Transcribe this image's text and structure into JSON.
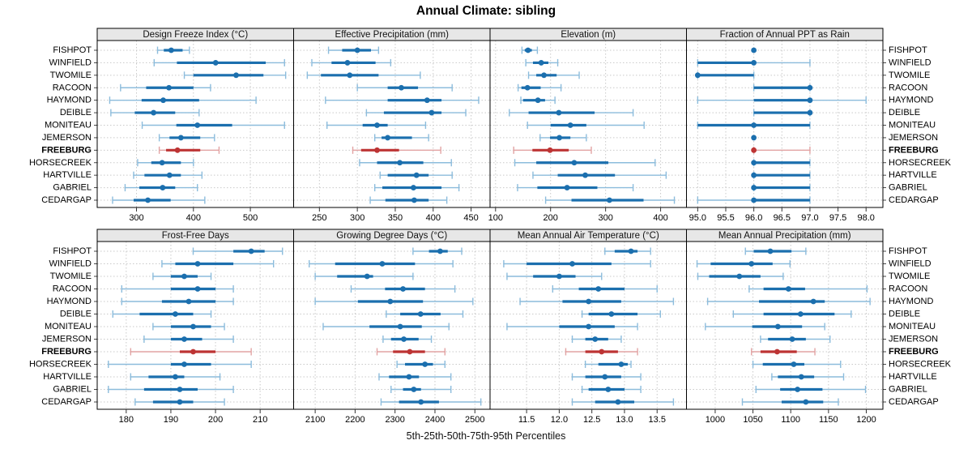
{
  "title": "Annual Climate: sibling",
  "caption": "5th-25th-50th-75th-95th Percentiles",
  "percentiles": [
    5,
    25,
    50,
    75,
    95
  ],
  "sites": [
    "FISHPOT",
    "WINFIELD",
    "TWOMILE",
    "RACOON",
    "HAYMOND",
    "DEIBLE",
    "MONITEAU",
    "JEMERSON",
    "FREEBURG",
    "HORSECREEK",
    "HARTVILLE",
    "GABRIEL",
    "CEDARGAP"
  ],
  "highlight_site": "FREEBURG",
  "colors": {
    "point_normal": "#1b6fae",
    "whisker_normal": "#8cbcdc",
    "point_highlight": "#bd3434",
    "whisker_highlight": "#e2a3a3",
    "strip_bg": "#e7e7e7",
    "grid": "#c9c9c9",
    "border": "#000000"
  },
  "chart_data": [
    {
      "type": "interval",
      "slug": "design-freeze-index",
      "title": "Design Freeze Index (°C)",
      "xlim": [
        231,
        576
      ],
      "ticks": [
        300,
        400,
        500
      ],
      "tick_labels": [
        "300",
        "400",
        "500"
      ],
      "values": [
        [
          337,
          348,
          361,
          381,
          393
        ],
        [
          331,
          371,
          439,
          527,
          560
        ],
        [
          384,
          400,
          475,
          523,
          562
        ],
        [
          272,
          317,
          357,
          400,
          430
        ],
        [
          253,
          309,
          347,
          410,
          510
        ],
        [
          255,
          297,
          330,
          368,
          410
        ],
        [
          310,
          370,
          407,
          468,
          560
        ],
        [
          340,
          358,
          378,
          412,
          437
        ],
        [
          340,
          352,
          372,
          412,
          445
        ],
        [
          302,
          326,
          345,
          378,
          400
        ],
        [
          295,
          314,
          358,
          378,
          415
        ],
        [
          280,
          305,
          346,
          368,
          407
        ],
        [
          258,
          295,
          320,
          360,
          420
        ]
      ]
    },
    {
      "type": "interval",
      "slug": "effective-precipitation",
      "title": "Effective Precipitation (mm)",
      "xlim": [
        216,
        475
      ],
      "ticks": [
        250,
        300,
        350,
        400,
        450
      ],
      "tick_labels": [
        "250",
        "300",
        "350",
        "400",
        "450"
      ],
      "values": [
        [
          262,
          280,
          300,
          318,
          328
        ],
        [
          240,
          266,
          287,
          324,
          344
        ],
        [
          234,
          252,
          290,
          328,
          383
        ],
        [
          300,
          340,
          358,
          380,
          425
        ],
        [
          258,
          340,
          392,
          411,
          460
        ],
        [
          312,
          335,
          398,
          411,
          443
        ],
        [
          260,
          307,
          326,
          340,
          390
        ],
        [
          323,
          332,
          340,
          372,
          394
        ],
        [
          294,
          305,
          326,
          355,
          410
        ],
        [
          303,
          326,
          356,
          387,
          424
        ],
        [
          330,
          340,
          378,
          394,
          425
        ],
        [
          323,
          333,
          374,
          411,
          434
        ],
        [
          317,
          337,
          375,
          394,
          418
        ]
      ]
    },
    {
      "type": "interval",
      "slug": "elevation",
      "title": "Elevation (m)",
      "xlim": [
        90,
        447
      ],
      "ticks": [
        100,
        200,
        300,
        400
      ],
      "tick_labels": [
        "100",
        "200",
        "300",
        "400"
      ],
      "values": [
        [
          148,
          153,
          159,
          166,
          176
        ],
        [
          155,
          168,
          183,
          196,
          213
        ],
        [
          160,
          174,
          188,
          211,
          252
        ],
        [
          141,
          147,
          158,
          182,
          219
        ],
        [
          146,
          150,
          177,
          190,
          208
        ],
        [
          125,
          160,
          215,
          280,
          350
        ],
        [
          158,
          200,
          236,
          265,
          370
        ],
        [
          181,
          199,
          216,
          236,
          265
        ],
        [
          133,
          167,
          199,
          233,
          274
        ],
        [
          135,
          174,
          243,
          305,
          390
        ],
        [
          168,
          213,
          263,
          317,
          410
        ],
        [
          140,
          176,
          230,
          285,
          350
        ],
        [
          191,
          238,
          307,
          369,
          425
        ]
      ]
    },
    {
      "type": "interval",
      "slug": "fraction-ppt-rain",
      "title": "Fraction of Annual PPT as Rain",
      "xlim": [
        94.8,
        98.3
      ],
      "ticks": [
        95.0,
        95.5,
        96.0,
        96.5,
        97.0,
        97.5,
        98.0
      ],
      "tick_labels": [
        "95.0",
        "95.5",
        "96.0",
        "96.5",
        "97.0",
        "97.5",
        "98.0"
      ],
      "values": [
        [
          96,
          96,
          96,
          96,
          96
        ],
        [
          95,
          95,
          96,
          96,
          97
        ],
        [
          95,
          95,
          95,
          96,
          96
        ],
        [
          96,
          96,
          97,
          97,
          97
        ],
        [
          95,
          96,
          97,
          97,
          98
        ],
        [
          96,
          96,
          97,
          97,
          97
        ],
        [
          95,
          95,
          96,
          97,
          97
        ],
        [
          96,
          96,
          96,
          96,
          96
        ],
        [
          96,
          96,
          96,
          96,
          97
        ],
        [
          96,
          96,
          96,
          97,
          97
        ],
        [
          96,
          96,
          96,
          97,
          97
        ],
        [
          96,
          96,
          96,
          97,
          97
        ],
        [
          95,
          96,
          96,
          97,
          97
        ]
      ]
    },
    {
      "type": "interval",
      "slug": "frost-free-days",
      "title": "Frost-Free Days",
      "xlim": [
        173.5,
        217.5
      ],
      "ticks": [
        180,
        190,
        200,
        210
      ],
      "tick_labels": [
        "180",
        "190",
        "200",
        "210"
      ],
      "values": [
        [
          195,
          204,
          208,
          211,
          215
        ],
        [
          188,
          191,
          196,
          204,
          213
        ],
        [
          186,
          190,
          193,
          196,
          199
        ],
        [
          179,
          190,
          196,
          200,
          204
        ],
        [
          179,
          188,
          194,
          200,
          204
        ],
        [
          177,
          183,
          191,
          195,
          199
        ],
        [
          186,
          190,
          195,
          199,
          202
        ],
        [
          184,
          190,
          193,
          197,
          204
        ],
        [
          181,
          192,
          195,
          200,
          208
        ],
        [
          176,
          190,
          193,
          199,
          208
        ],
        [
          181,
          185,
          191,
          193,
          201
        ],
        [
          176,
          184,
          192,
          196,
          204
        ],
        [
          182,
          186,
          192,
          195,
          202
        ]
      ]
    },
    {
      "type": "interval",
      "slug": "growing-degree-days",
      "title": "Growing Degree Days (°C)",
      "xlim": [
        2046,
        2538
      ],
      "ticks": [
        2100,
        2200,
        2300,
        2400,
        2500
      ],
      "tick_labels": [
        "2100",
        "2200",
        "2300",
        "2400",
        "2500"
      ],
      "values": [
        [
          2345,
          2385,
          2413,
          2432,
          2467
        ],
        [
          2085,
          2150,
          2268,
          2350,
          2445
        ],
        [
          2100,
          2155,
          2230,
          2245,
          2345
        ],
        [
          2190,
          2275,
          2320,
          2375,
          2450
        ],
        [
          2100,
          2207,
          2288,
          2370,
          2495
        ],
        [
          2278,
          2313,
          2364,
          2414,
          2470
        ],
        [
          2120,
          2236,
          2313,
          2367,
          2435
        ],
        [
          2270,
          2290,
          2322,
          2359,
          2391
        ],
        [
          2255,
          2295,
          2337,
          2375,
          2425
        ],
        [
          2305,
          2325,
          2375,
          2395,
          2425
        ],
        [
          2260,
          2285,
          2335,
          2360,
          2440
        ],
        [
          2290,
          2320,
          2347,
          2365,
          2440
        ],
        [
          2265,
          2310,
          2365,
          2410,
          2515
        ]
      ]
    },
    {
      "type": "interval",
      "slug": "mean-annual-air-temperature",
      "title": "Mean Annual Air Temperature (°C)",
      "xlim": [
        10.94,
        13.95
      ],
      "ticks": [
        11.5,
        12.0,
        12.5,
        13.0,
        13.5
      ],
      "tick_labels": [
        "11.5",
        "12.0",
        "12.5",
        "13.0",
        "13.5"
      ],
      "values": [
        [
          12.7,
          12.85,
          13.1,
          13.2,
          13.4
        ],
        [
          11.15,
          11.5,
          12.2,
          12.8,
          13.4
        ],
        [
          11.2,
          11.6,
          12.0,
          12.25,
          12.65
        ],
        [
          11.9,
          12.3,
          12.6,
          13.0,
          13.5
        ],
        [
          11.4,
          12.05,
          12.45,
          12.95,
          13.75
        ],
        [
          12.35,
          12.45,
          12.8,
          13.2,
          13.55
        ],
        [
          11.2,
          12.0,
          12.45,
          12.85,
          13.2
        ],
        [
          12.2,
          12.4,
          12.55,
          12.75,
          12.95
        ],
        [
          12.1,
          12.4,
          12.65,
          12.9,
          13.2
        ],
        [
          12.4,
          12.6,
          12.95,
          13.05,
          13.1
        ],
        [
          12.2,
          12.4,
          12.7,
          12.95,
          13.25
        ],
        [
          12.35,
          12.45,
          12.75,
          13.0,
          13.25
        ],
        [
          12.2,
          12.55,
          12.9,
          13.15,
          13.75
        ]
      ]
    },
    {
      "type": "interval",
      "slug": "mean-annual-precipitation",
      "title": "Mean Annual Precipitation (mm)",
      "xlim": [
        962,
        1222
      ],
      "ticks": [
        1000,
        1050,
        1100,
        1150,
        1200
      ],
      "tick_labels": [
        "1000",
        "1050",
        "1100",
        "1150",
        "1200"
      ],
      "values": [
        [
          1040,
          1051,
          1073,
          1101,
          1120
        ],
        [
          976,
          994,
          1048,
          1076,
          1099
        ],
        [
          977,
          992,
          1032,
          1060,
          1090
        ],
        [
          1045,
          1064,
          1097,
          1119,
          1201
        ],
        [
          990,
          1058,
          1130,
          1145,
          1205
        ],
        [
          1024,
          1064,
          1113,
          1158,
          1180
        ],
        [
          987,
          1049,
          1083,
          1115,
          1145
        ],
        [
          1060,
          1070,
          1102,
          1120,
          1152
        ],
        [
          1048,
          1060,
          1082,
          1108,
          1132
        ],
        [
          1050,
          1063,
          1104,
          1118,
          1166
        ],
        [
          1075,
          1083,
          1114,
          1131,
          1170
        ],
        [
          1054,
          1086,
          1109,
          1142,
          1199
        ],
        [
          1036,
          1088,
          1120,
          1143,
          1163
        ]
      ]
    }
  ]
}
